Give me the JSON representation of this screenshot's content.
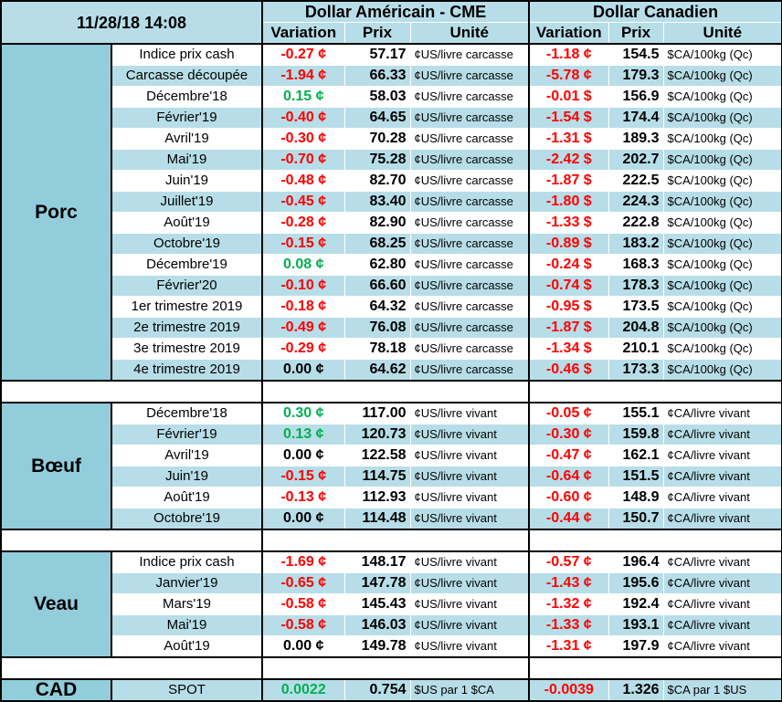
{
  "timestamp": "11/28/18 14:08",
  "header": {
    "usd_title": "Dollar Américain - CME",
    "cad_title": "Dollar Canadien",
    "col_variation": "Variation",
    "col_prix": "Prix",
    "col_unite": "Unité"
  },
  "colors": {
    "negative": "#ff0000",
    "positive": "#00b050",
    "band": "#b7dee8",
    "category": "#92cddc"
  },
  "sections": {
    "porc": {
      "name": "Porc",
      "rows": [
        {
          "label": "Indice prix cash",
          "usd_var": "-0.27 ¢",
          "usd_sign": "neg",
          "usd_prix": "57.17",
          "usd_unit": "¢US/livre carcasse",
          "cad_var": "-1.18 ¢",
          "cad_sign": "neg",
          "cad_prix": "154.5",
          "cad_unit": "$CA/100kg (Qc)"
        },
        {
          "label": "Carcasse découpée",
          "usd_var": "-1.94 ¢",
          "usd_sign": "neg",
          "usd_prix": "66.33",
          "usd_unit": "¢US/livre carcasse",
          "cad_var": "-5.78 ¢",
          "cad_sign": "neg",
          "cad_prix": "179.3",
          "cad_unit": "$CA/100kg (Qc)"
        },
        {
          "label": "Décembre'18",
          "usd_var": "0.15 ¢",
          "usd_sign": "pos",
          "usd_prix": "58.03",
          "usd_unit": "¢US/livre carcasse",
          "cad_var": "-0.01 $",
          "cad_sign": "neg",
          "cad_prix": "156.9",
          "cad_unit": "$CA/100kg (Qc)"
        },
        {
          "label": "Février'19",
          "usd_var": "-0.40 ¢",
          "usd_sign": "neg",
          "usd_prix": "64.65",
          "usd_unit": "¢US/livre carcasse",
          "cad_var": "-1.54 $",
          "cad_sign": "neg",
          "cad_prix": "174.4",
          "cad_unit": "$CA/100kg (Qc)"
        },
        {
          "label": "Avril'19",
          "usd_var": "-0.30 ¢",
          "usd_sign": "neg",
          "usd_prix": "70.28",
          "usd_unit": "¢US/livre carcasse",
          "cad_var": "-1.31 $",
          "cad_sign": "neg",
          "cad_prix": "189.3",
          "cad_unit": "$CA/100kg (Qc)"
        },
        {
          "label": "Mai'19",
          "usd_var": "-0.70 ¢",
          "usd_sign": "neg",
          "usd_prix": "75.28",
          "usd_unit": "¢US/livre carcasse",
          "cad_var": "-2.42 $",
          "cad_sign": "neg",
          "cad_prix": "202.7",
          "cad_unit": "$CA/100kg (Qc)"
        },
        {
          "label": "Juin'19",
          "usd_var": "-0.48 ¢",
          "usd_sign": "neg",
          "usd_prix": "82.70",
          "usd_unit": "¢US/livre carcasse",
          "cad_var": "-1.87 $",
          "cad_sign": "neg",
          "cad_prix": "222.5",
          "cad_unit": "$CA/100kg (Qc)"
        },
        {
          "label": "Juillet'19",
          "usd_var": "-0.45 ¢",
          "usd_sign": "neg",
          "usd_prix": "83.40",
          "usd_unit": "¢US/livre carcasse",
          "cad_var": "-1.80 $",
          "cad_sign": "neg",
          "cad_prix": "224.3",
          "cad_unit": "$CA/100kg (Qc)"
        },
        {
          "label": "Août'19",
          "usd_var": "-0.28 ¢",
          "usd_sign": "neg",
          "usd_prix": "82.90",
          "usd_unit": "¢US/livre carcasse",
          "cad_var": "-1.33 $",
          "cad_sign": "neg",
          "cad_prix": "222.8",
          "cad_unit": "$CA/100kg (Qc)"
        },
        {
          "label": "Octobre'19",
          "usd_var": "-0.15 ¢",
          "usd_sign": "neg",
          "usd_prix": "68.25",
          "usd_unit": "¢US/livre carcasse",
          "cad_var": "-0.89 $",
          "cad_sign": "neg",
          "cad_prix": "183.2",
          "cad_unit": "$CA/100kg (Qc)"
        },
        {
          "label": "Décembre'19",
          "usd_var": "0.08 ¢",
          "usd_sign": "pos",
          "usd_prix": "62.80",
          "usd_unit": "¢US/livre carcasse",
          "cad_var": "-0.24 $",
          "cad_sign": "neg",
          "cad_prix": "168.3",
          "cad_unit": "$CA/100kg (Qc)"
        },
        {
          "label": "Février'20",
          "usd_var": "-0.10 ¢",
          "usd_sign": "neg",
          "usd_prix": "66.60",
          "usd_unit": "¢US/livre carcasse",
          "cad_var": "-0.74 $",
          "cad_sign": "neg",
          "cad_prix": "178.3",
          "cad_unit": "$CA/100kg (Qc)"
        },
        {
          "label": "1er trimestre 2019",
          "usd_var": "-0.18 ¢",
          "usd_sign": "neg",
          "usd_prix": "64.32",
          "usd_unit": "¢US/livre carcasse",
          "cad_var": "-0.95 $",
          "cad_sign": "neg",
          "cad_prix": "173.5",
          "cad_unit": "$CA/100kg (Qc)"
        },
        {
          "label": "2e trimestre 2019",
          "usd_var": "-0.49 ¢",
          "usd_sign": "neg",
          "usd_prix": "76.08",
          "usd_unit": "¢US/livre carcasse",
          "cad_var": "-1.87 $",
          "cad_sign": "neg",
          "cad_prix": "204.8",
          "cad_unit": "$CA/100kg (Qc)"
        },
        {
          "label": "3e trimestre 2019",
          "usd_var": "-0.29 ¢",
          "usd_sign": "neg",
          "usd_prix": "78.18",
          "usd_unit": "¢US/livre carcasse",
          "cad_var": "-1.34 $",
          "cad_sign": "neg",
          "cad_prix": "210.1",
          "cad_unit": "$CA/100kg (Qc)"
        },
        {
          "label": "4e trimestre 2019",
          "usd_var": "0.00 ¢",
          "usd_sign": "zero",
          "usd_prix": "64.62",
          "usd_unit": "¢US/livre carcasse",
          "cad_var": "-0.46 $",
          "cad_sign": "neg",
          "cad_prix": "173.3",
          "cad_unit": "$CA/100kg (Qc)"
        }
      ]
    },
    "boeuf": {
      "name": "Bœuf",
      "rows": [
        {
          "label": "Décembre'18",
          "usd_var": "0.30 ¢",
          "usd_sign": "pos",
          "usd_prix": "117.00",
          "usd_unit": "¢US/livre vivant",
          "cad_var": "-0.05 ¢",
          "cad_sign": "neg",
          "cad_prix": "155.1",
          "cad_unit": "¢CA/livre vivant"
        },
        {
          "label": "Février'19",
          "usd_var": "0.13 ¢",
          "usd_sign": "pos",
          "usd_prix": "120.73",
          "usd_unit": "¢US/livre vivant",
          "cad_var": "-0.30 ¢",
          "cad_sign": "neg",
          "cad_prix": "159.8",
          "cad_unit": "¢CA/livre vivant"
        },
        {
          "label": "Avril'19",
          "usd_var": "0.00 ¢",
          "usd_sign": "zero",
          "usd_prix": "122.58",
          "usd_unit": "¢US/livre vivant",
          "cad_var": "-0.47 ¢",
          "cad_sign": "neg",
          "cad_prix": "162.1",
          "cad_unit": "¢CA/livre vivant"
        },
        {
          "label": "Juin'19",
          "usd_var": "-0.15 ¢",
          "usd_sign": "neg",
          "usd_prix": "114.75",
          "usd_unit": "¢US/livre vivant",
          "cad_var": "-0.64 ¢",
          "cad_sign": "neg",
          "cad_prix": "151.5",
          "cad_unit": "¢CA/livre vivant"
        },
        {
          "label": "Août'19",
          "usd_var": "-0.13 ¢",
          "usd_sign": "neg",
          "usd_prix": "112.93",
          "usd_unit": "¢US/livre vivant",
          "cad_var": "-0.60 ¢",
          "cad_sign": "neg",
          "cad_prix": "148.9",
          "cad_unit": "¢CA/livre vivant"
        },
        {
          "label": "Octobre'19",
          "usd_var": "0.00 ¢",
          "usd_sign": "zero",
          "usd_prix": "114.48",
          "usd_unit": "¢US/livre vivant",
          "cad_var": "-0.44 ¢",
          "cad_sign": "neg",
          "cad_prix": "150.7",
          "cad_unit": "¢CA/livre vivant"
        }
      ]
    },
    "veau": {
      "name": "Veau",
      "rows": [
        {
          "label": "Indice prix cash",
          "usd_var": "-1.69 ¢",
          "usd_sign": "neg",
          "usd_prix": "148.17",
          "usd_unit": "¢US/livre vivant",
          "cad_var": "-0.57 ¢",
          "cad_sign": "neg",
          "cad_prix": "196.4",
          "cad_unit": "¢CA/livre vivant"
        },
        {
          "label": "Janvier'19",
          "usd_var": "-0.65 ¢",
          "usd_sign": "neg",
          "usd_prix": "147.78",
          "usd_unit": "¢US/livre vivant",
          "cad_var": "-1.43 ¢",
          "cad_sign": "neg",
          "cad_prix": "195.6",
          "cad_unit": "¢CA/livre vivant"
        },
        {
          "label": "Mars'19",
          "usd_var": "-0.58 ¢",
          "usd_sign": "neg",
          "usd_prix": "145.43",
          "usd_unit": "¢US/livre vivant",
          "cad_var": "-1.32 ¢",
          "cad_sign": "neg",
          "cad_prix": "192.4",
          "cad_unit": "¢CA/livre vivant"
        },
        {
          "label": "Mai'19",
          "usd_var": "-0.58 ¢",
          "usd_sign": "neg",
          "usd_prix": "146.03",
          "usd_unit": "¢US/livre vivant",
          "cad_var": "-1.33 ¢",
          "cad_sign": "neg",
          "cad_prix": "193.1",
          "cad_unit": "¢CA/livre vivant"
        },
        {
          "label": "Août'19",
          "usd_var": "0.00 ¢",
          "usd_sign": "zero",
          "usd_prix": "149.78",
          "usd_unit": "¢US/livre vivant",
          "cad_var": "-1.31 ¢",
          "cad_sign": "neg",
          "cad_prix": "197.9",
          "cad_unit": "¢CA/livre vivant"
        }
      ]
    }
  },
  "cad": {
    "name": "CAD",
    "label": "SPOT",
    "usd_var": "0.0022",
    "usd_sign": "pos",
    "usd_prix": "0.754",
    "usd_unit": "$US par 1 $CA",
    "cad_var": "-0.0039",
    "cad_sign": "neg",
    "cad_prix": "1.326",
    "cad_unit": "$CA par 1 $US"
  }
}
